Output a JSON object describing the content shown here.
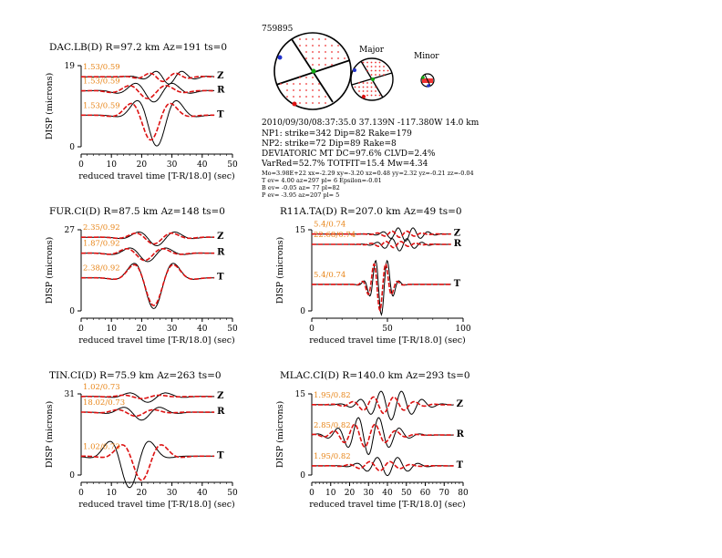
{
  "event": {
    "id": "759895",
    "origin": "2010/09/30/08:37:35.0 37.139N -117.380W 14.0 km",
    "np1": "NP1: strike=342 Dip=82 Rake=179",
    "np2": "NP2: strike=72 Dip=89 Rake=8",
    "deviatoric": "DEVIATORIC MT DC=97.6% CLVD=2.4%",
    "varred": "VarRed=52.7% TOTFIT=15.4 Mw=4.34",
    "mo_line": "Mo=3.98E+22 xx=-2.29 xy=-3.20 xz=0.48 yy=2.32 yz=-0.21 zz=-0.04",
    "t_line": "T ev= 4.00 az=297 pl= 6 Epsilon=-0.01",
    "b_line": "B ev= -0.05 az= 77 pl=82",
    "p_line": "P ev= -3.95 az=207 pl= 5",
    "major_label": "Major",
    "minor_label": "Minor"
  },
  "colors": {
    "observed": "#000000",
    "synthetic": "#dd1111",
    "annotation": "#e8861a",
    "pressure_points": "#ee3333",
    "t_axis": "#2233cc",
    "p_axis": "#dd1111",
    "b_axis": "#11aa11"
  },
  "chart_data": [
    {
      "type": "line",
      "title": "DAC.LB(D) R=97.2 km Az=191 ts=0",
      "xlabel": "reduced travel time [T-R/18.0] (sec)",
      "ylabel": "DISP (microns)",
      "xlim": [
        0,
        50
      ],
      "xticks": [
        0,
        10,
        20,
        30,
        40,
        50
      ],
      "xmax_data": 44,
      "ylim": [
        0,
        19
      ],
      "yticks": [
        0,
        19
      ],
      "traces": [
        {
          "component": "Z",
          "annotation": "1.53/0.59",
          "baseline": 16.4,
          "obs_amp": 1.7,
          "syn_amp": 1.1,
          "obs_center": 29,
          "syn_center": 27,
          "period": 9,
          "width": 8
        },
        {
          "component": "R",
          "annotation": "1.53/0.59",
          "baseline": 13.1,
          "obs_amp": 2.6,
          "syn_amp": 1.8,
          "obs_center": 24,
          "syn_center": 22,
          "period": 13,
          "width": 10
        },
        {
          "component": "T",
          "annotation": "1.53/0.59",
          "baseline": 7.4,
          "obs_amp": 7.2,
          "syn_amp": 5.8,
          "obs_center": 25,
          "syn_center": 23,
          "period": 15,
          "width": 8
        }
      ]
    },
    {
      "type": "line",
      "title": "R11A.TA(D) R=207.0 km Az=49 ts=0",
      "xlabel": "reduced travel time [T-R/18.0] (sec)",
      "ylabel": "DISP (microns)",
      "xlim": [
        0,
        100
      ],
      "xticks": [
        0,
        50,
        100
      ],
      "xmax_data": 92,
      "ylim": [
        0,
        15
      ],
      "yticks": [
        0,
        15
      ],
      "traces": [
        {
          "component": "Z",
          "annotation": "5.4/0.74",
          "baseline": 14.2,
          "obs_amp": 1.3,
          "syn_amp": 0.6,
          "obs_center": 62,
          "syn_center": 58,
          "period": 10,
          "width": 14
        },
        {
          "component": "R",
          "annotation": "22.68/0.74",
          "baseline": 12.3,
          "obs_amp": 1.2,
          "syn_amp": 0.6,
          "obs_center": 58,
          "syn_center": 54,
          "period": 10,
          "width": 14
        },
        {
          "component": "T",
          "annotation": "5.4/0.74",
          "baseline": 4.9,
          "obs_amp": 5.6,
          "syn_amp": 4.8,
          "obs_center": 46,
          "syn_center": 45,
          "period": 8,
          "width": 8
        }
      ]
    },
    {
      "type": "line",
      "title": "FUR.CI(D) R=87.5 km Az=148 ts=0",
      "xlabel": "reduced travel time [T-R/18.0] (sec)",
      "ylabel": "DISP (microns)",
      "xlim": [
        0,
        50
      ],
      "xticks": [
        0,
        10,
        20,
        30,
        40,
        50
      ],
      "xmax_data": 44,
      "ylim": [
        0,
        27
      ],
      "yticks": [
        0,
        27
      ],
      "traces": [
        {
          "component": "Z",
          "annotation": "2.35/0.92",
          "baseline": 24.5,
          "obs_amp": 2.8,
          "syn_amp": 2.2,
          "obs_center": 25,
          "syn_center": 24,
          "period": 13,
          "width": 9
        },
        {
          "component": "R",
          "annotation": "1.87/0.92",
          "baseline": 19.2,
          "obs_amp": 2.8,
          "syn_amp": 2.4,
          "obs_center": 22,
          "syn_center": 21,
          "period": 13,
          "width": 9
        },
        {
          "component": "T",
          "annotation": "2.38/0.92",
          "baseline": 11.0,
          "obs_amp": 10.2,
          "syn_amp": 9.2,
          "obs_center": 24,
          "syn_center": 24,
          "period": 15,
          "width": 8
        }
      ]
    },
    {
      "type": "line",
      "title": "TIN.CI(D) R=75.9 km Az=263 ts=0",
      "xlabel": "reduced travel time [T-R/18.0] (sec)",
      "ylabel": "DISP (microns)",
      "xlim": [
        0,
        50
      ],
      "xticks": [
        0,
        10,
        20,
        30,
        40,
        50
      ],
      "xmax_data": 44,
      "ylim": [
        0,
        31
      ],
      "yticks": [
        0,
        31
      ],
      "traces": [
        {
          "component": "Z",
          "annotation": "1.02/0.73",
          "baseline": 30.0,
          "obs_amp": 2.2,
          "syn_amp": 0.8,
          "obs_center": 22,
          "syn_center": 20,
          "period": 13,
          "width": 9
        },
        {
          "component": "R",
          "annotation": "18.02/0.73",
          "baseline": 24.0,
          "obs_amp": 3.0,
          "syn_amp": 1.5,
          "obs_center": 20,
          "syn_center": 18,
          "period": 13,
          "width": 9
        },
        {
          "component": "T",
          "annotation": "1.02/0.73",
          "baseline": 7.2,
          "obs_amp": 12.0,
          "syn_amp": 9.2,
          "obs_center": 16,
          "syn_center": 20,
          "period": 15,
          "width": 8
        }
      ]
    },
    {
      "type": "line",
      "title": "MLAC.CI(D) R=140.0 km Az=293 ts=0",
      "xlabel": "reduced travel time [T-R/18.0] (sec)",
      "ylabel": "DISP (microns)",
      "xlim": [
        0,
        80
      ],
      "xticks": [
        0,
        10,
        20,
        30,
        40,
        50,
        60,
        70,
        80
      ],
      "xmax_data": 75,
      "ylim": [
        0,
        15
      ],
      "yticks": [
        0,
        15
      ],
      "traces": [
        {
          "component": "Z",
          "annotation": "1.95/0.82",
          "baseline": 13.0,
          "obs_amp": 2.8,
          "syn_amp": 1.6,
          "obs_center": 42,
          "syn_center": 38,
          "period": 11,
          "width": 16
        },
        {
          "component": "R",
          "annotation": "2.85/0.82",
          "baseline": 7.4,
          "obs_amp": 3.6,
          "syn_amp": 2.2,
          "obs_center": 30,
          "syn_center": 28,
          "period": 11,
          "width": 16
        },
        {
          "component": "T",
          "annotation": "1.95/0.82",
          "baseline": 1.7,
          "obs_amp": 1.8,
          "syn_amp": 0.9,
          "obs_center": 40,
          "syn_center": 36,
          "period": 11,
          "width": 14
        }
      ]
    }
  ]
}
